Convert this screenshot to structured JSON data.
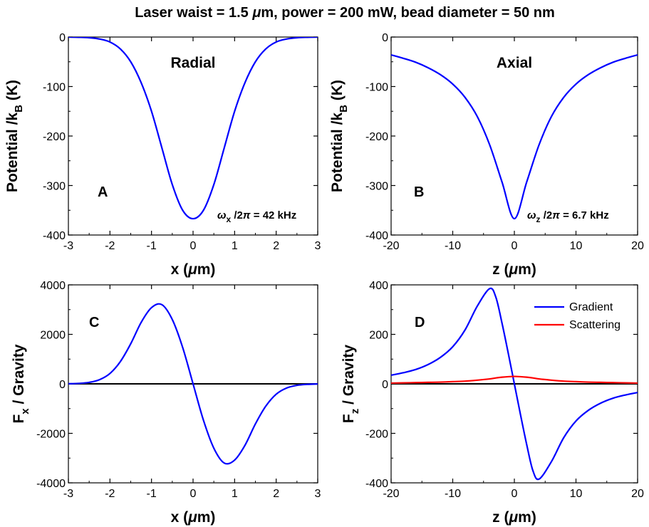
{
  "figure": {
    "suptitle_parts": {
      "a": "Laser waist = 1.5 ",
      "mu": "μ",
      "b": "m, power = 200 mW, bead diameter = 50 nm"
    }
  },
  "colors": {
    "gradient": "#0000ff",
    "scattering": "#ff0000",
    "zero_line": "#000000"
  },
  "chart_data": [
    {
      "id": "A",
      "type": "line",
      "panel_letter": "A",
      "panel_title": "Radial",
      "xlabel_parts": {
        "pre": "x (",
        "mu": "μ",
        "post": "m)"
      },
      "ylabel_parts": {
        "pre": "Potential /k",
        "sub": "B",
        "post": " (K)"
      },
      "annotation_parts": {
        "omega": "ω",
        "sub": "x",
        "post": " /2",
        "pi": "π",
        "value": " = 42 kHz"
      },
      "xlim": [
        -3,
        3
      ],
      "ylim": [
        -400,
        0
      ],
      "xticks": [
        -3,
        -2,
        -1,
        0,
        1,
        2,
        3
      ],
      "yticks": [
        0,
        -100,
        -200,
        -300,
        -400
      ],
      "x": [
        -3,
        -2.75,
        -2.5,
        -2.25,
        -2,
        -1.75,
        -1.5,
        -1.25,
        -1,
        -0.75,
        -0.5,
        -0.25,
        0,
        0.25,
        0.5,
        0.75,
        1,
        1.25,
        1.5,
        1.75,
        2,
        2.25,
        2.5,
        2.75,
        3
      ],
      "series": [
        {
          "values": [
            -0.1,
            -0.5,
            -1.4,
            -4,
            -10,
            -24,
            -50,
            -92,
            -150,
            -224,
            -298,
            -350,
            -367,
            -350,
            -298,
            -224,
            -150,
            -92,
            -50,
            -24,
            -10,
            -4,
            -1.4,
            -0.5,
            -0.1
          ]
        }
      ]
    },
    {
      "id": "B",
      "type": "line",
      "panel_letter": "B",
      "panel_title": "Axial",
      "xlabel_parts": {
        "pre": "z (",
        "mu": "μ",
        "post": "m)"
      },
      "ylabel_parts": {
        "pre": "Potential /k",
        "sub": "B",
        "post": " (K)"
      },
      "annotation_parts": {
        "omega": "ω",
        "sub": "z",
        "post": " /2",
        "pi": "π",
        "value": " = 6.7 kHz"
      },
      "xlim": [
        -20,
        20
      ],
      "ylim": [
        -400,
        0
      ],
      "xticks": [
        -20,
        -10,
        0,
        10,
        20
      ],
      "yticks": [
        0,
        -100,
        -200,
        -300,
        -400
      ],
      "x": [
        -20,
        -18,
        -16,
        -14,
        -12,
        -10,
        -8,
        -6,
        -4,
        -2,
        0,
        2,
        4,
        6,
        8,
        10,
        12,
        14,
        16,
        18,
        20
      ],
      "series": [
        {
          "values": [
            -36,
            -43,
            -51,
            -62,
            -76,
            -95,
            -122,
            -161,
            -218,
            -293,
            -367,
            -293,
            -218,
            -161,
            -122,
            -95,
            -76,
            -62,
            -51,
            -43,
            -36
          ]
        }
      ]
    },
    {
      "id": "C",
      "type": "line",
      "panel_letter": "C",
      "xlabel_parts": {
        "pre": "x (",
        "mu": "μ",
        "post": "m)"
      },
      "ylabel_parts": {
        "pre": "F",
        "sub": "x",
        "post": " / Gravity"
      },
      "xlim": [
        -3,
        3
      ],
      "ylim": [
        -4000,
        4000
      ],
      "xticks": [
        -3,
        -2,
        -1,
        0,
        1,
        2,
        3
      ],
      "yticks": [
        4000,
        2000,
        0,
        -2000,
        -4000
      ],
      "zero_line": true,
      "x": [
        -3,
        -2.75,
        -2.5,
        -2.25,
        -2,
        -1.75,
        -1.5,
        -1.25,
        -1,
        -0.75,
        -0.5,
        -0.25,
        0,
        0.25,
        0.5,
        0.75,
        1,
        1.25,
        1.5,
        1.75,
        2,
        2.25,
        2.5,
        2.75,
        3
      ],
      "series": [
        {
          "values": [
            5,
            20,
            60,
            170,
            420,
            900,
            1620,
            2480,
            3080,
            3200,
            2600,
            1470,
            0,
            -1470,
            -2600,
            -3200,
            -3080,
            -2480,
            -1620,
            -900,
            -420,
            -170,
            -60,
            -20,
            -5
          ]
        }
      ]
    },
    {
      "id": "D",
      "type": "line",
      "panel_letter": "D",
      "xlabel_parts": {
        "pre": "z (",
        "mu": "μ",
        "post": "m)"
      },
      "ylabel_parts": {
        "pre": "F",
        "sub": "z",
        "post": " / Gravity"
      },
      "xlim": [
        -20,
        20
      ],
      "ylim": [
        -400,
        400
      ],
      "xticks": [
        -20,
        -10,
        0,
        10,
        20
      ],
      "yticks": [
        400,
        200,
        0,
        -200,
        -400
      ],
      "zero_line": true,
      "legend_position": "top-right",
      "x": [
        -20,
        -18,
        -16,
        -14,
        -12,
        -10,
        -8,
        -6,
        -4,
        -3,
        -2,
        -1,
        0,
        1,
        2,
        3,
        4,
        6,
        8,
        10,
        12,
        14,
        16,
        18,
        20
      ],
      "series": [
        {
          "name": "Gradient",
          "color_key": "gradient",
          "values": [
            35,
            45,
            58,
            78,
            107,
            150,
            218,
            315,
            385,
            350,
            245,
            125,
            0,
            -125,
            -245,
            -350,
            -385,
            -315,
            -218,
            -150,
            -107,
            -78,
            -58,
            -45,
            -35
          ]
        },
        {
          "name": "Scattering",
          "color_key": "scattering",
          "values": [
            3,
            4,
            5,
            6,
            7,
            9,
            11,
            15,
            20,
            24,
            27,
            29,
            30,
            29,
            27,
            24,
            20,
            15,
            11,
            9,
            7,
            6,
            5,
            4,
            3
          ]
        }
      ]
    }
  ]
}
